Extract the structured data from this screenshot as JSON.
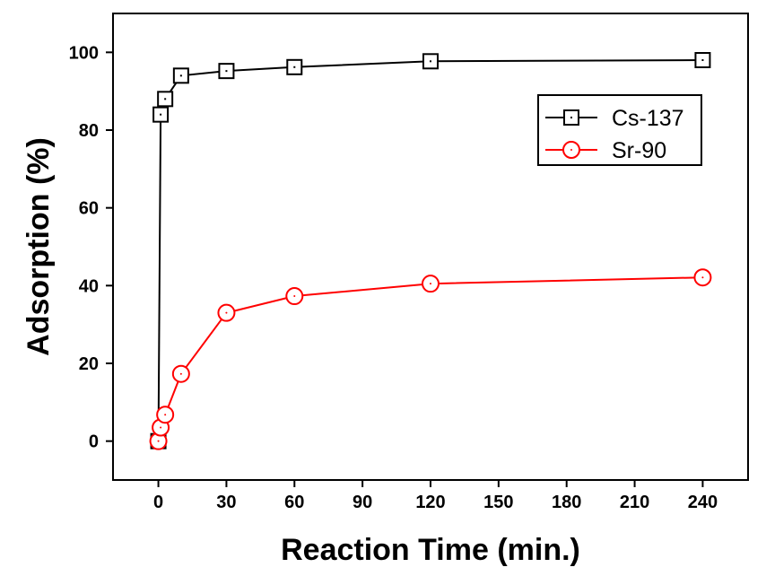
{
  "chart_data": {
    "type": "line",
    "xlabel": "Reaction Time (min.)",
    "ylabel": "Adsorption (%)",
    "xlim": [
      -20,
      260
    ],
    "ylim": [
      -10,
      110
    ],
    "xticks": [
      0,
      30,
      60,
      90,
      120,
      150,
      180,
      210,
      240
    ],
    "yticks": [
      0,
      20,
      40,
      60,
      80,
      100
    ],
    "grid": false,
    "legend_position": "top-right",
    "series": [
      {
        "name": "Cs-137",
        "color": "#000000",
        "marker": "square",
        "x": [
          0,
          1,
          3,
          10,
          30,
          60,
          120,
          240
        ],
        "y": [
          0,
          84,
          88,
          94,
          95.2,
          96.2,
          97.7,
          98
        ]
      },
      {
        "name": "Sr-90",
        "color": "#ff0000",
        "marker": "circle",
        "x": [
          0,
          1,
          3,
          10,
          30,
          60,
          120,
          240
        ],
        "y": [
          0,
          3.5,
          6.8,
          17.3,
          33,
          37.3,
          40.5,
          42.1
        ]
      }
    ]
  }
}
